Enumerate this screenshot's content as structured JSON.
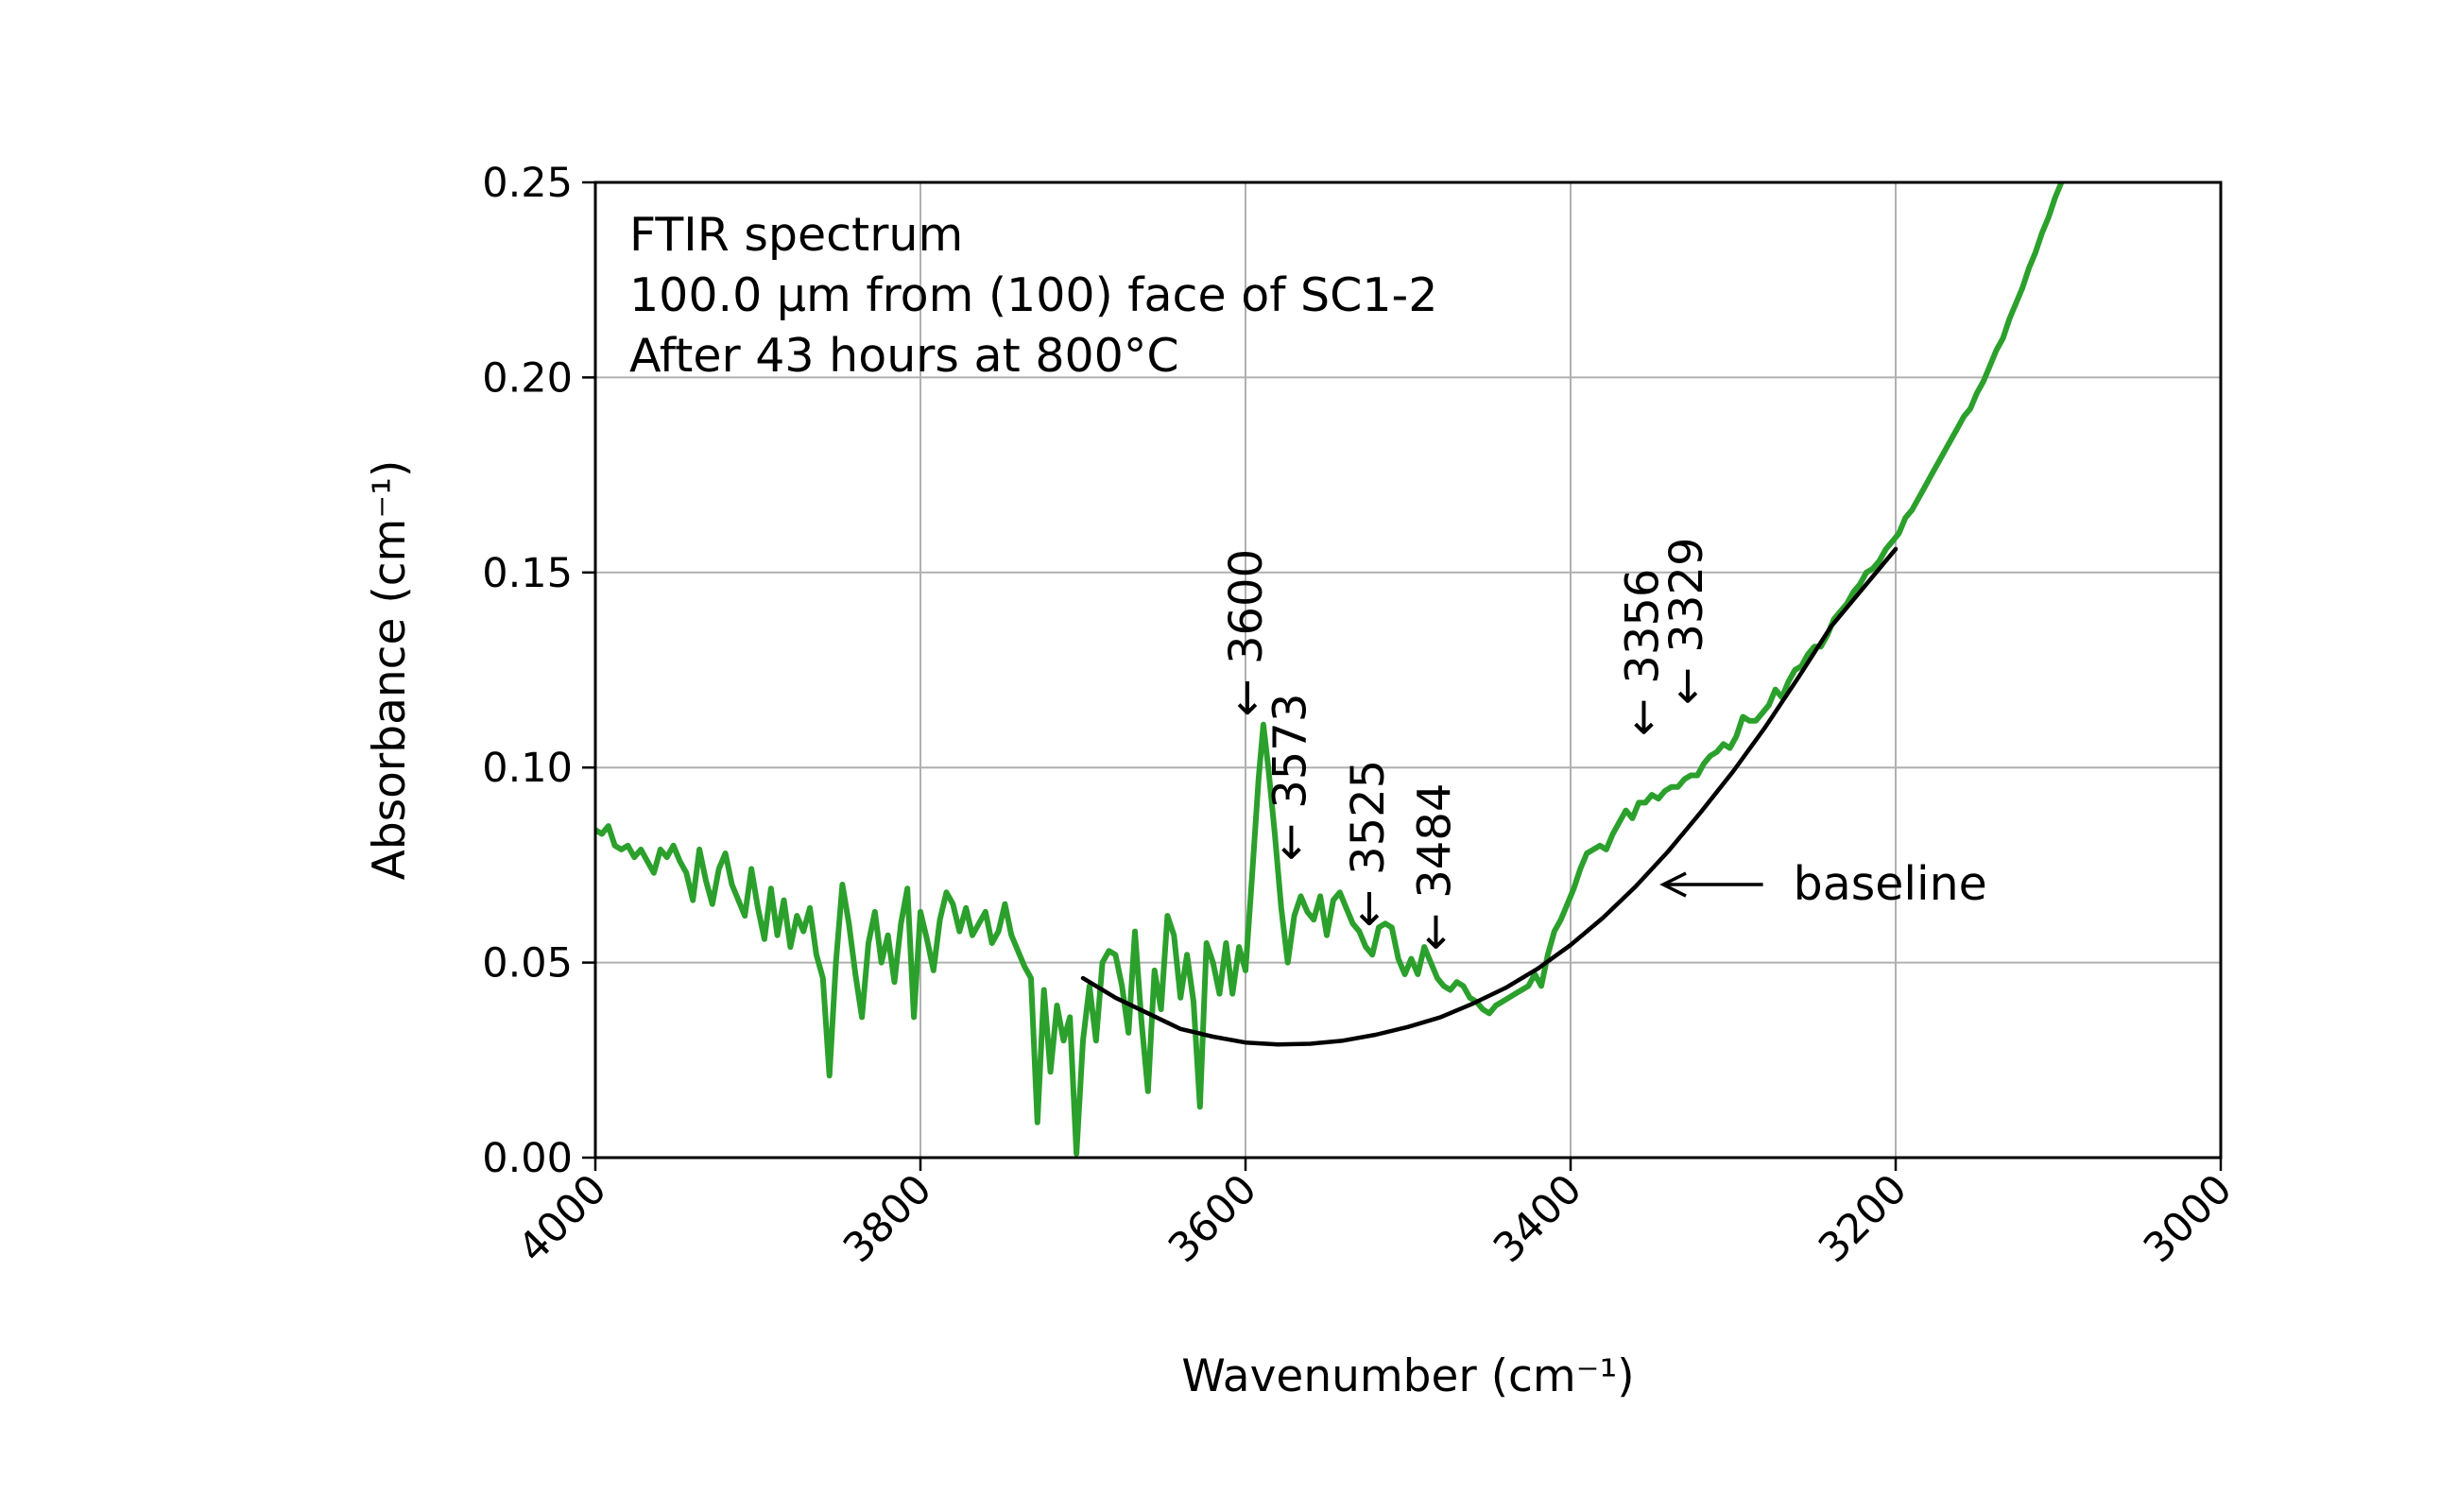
{
  "chart_data": {
    "type": "line",
    "annotation_lines": [
      "FTIR spectrum",
      "100.0 μm from (100) face of SC1-2",
      "After 43 hours at 800°C"
    ],
    "xlabel": "Wavenumber (cm⁻¹)",
    "ylabel": "Absorbance (cm⁻¹)",
    "xlim": [
      4000,
      3000
    ],
    "ylim": [
      0,
      0.25
    ],
    "x_ticks": [
      4000,
      3800,
      3600,
      3400,
      3200,
      3000
    ],
    "y_ticks": [
      "0.00",
      "0.05",
      "0.10",
      "0.15",
      "0.20",
      "0.25"
    ],
    "x_axis_reversed": true,
    "grid": true,
    "colors": {
      "spectrum": "#2ca02c",
      "baseline": "#000000",
      "grid": "#b0b0b0"
    },
    "series": [
      {
        "key": "spectrum",
        "points": [
          [
            4000,
            0.084
          ],
          [
            3996,
            0.083
          ],
          [
            3992,
            0.085
          ],
          [
            3988,
            0.08
          ],
          [
            3984,
            0.079
          ],
          [
            3980,
            0.08
          ],
          [
            3976,
            0.077
          ],
          [
            3972,
            0.079
          ],
          [
            3968,
            0.076
          ],
          [
            3964,
            0.073
          ],
          [
            3960,
            0.079
          ],
          [
            3956,
            0.077
          ],
          [
            3952,
            0.08
          ],
          [
            3948,
            0.076
          ],
          [
            3944,
            0.073
          ],
          [
            3940,
            0.066
          ],
          [
            3936,
            0.079
          ],
          [
            3932,
            0.071
          ],
          [
            3928,
            0.065
          ],
          [
            3924,
            0.074
          ],
          [
            3920,
            0.078
          ],
          [
            3916,
            0.07
          ],
          [
            3912,
            0.066
          ],
          [
            3908,
            0.062
          ],
          [
            3904,
            0.074
          ],
          [
            3900,
            0.064
          ],
          [
            3896,
            0.056
          ],
          [
            3892,
            0.069
          ],
          [
            3888,
            0.057
          ],
          [
            3884,
            0.066
          ],
          [
            3880,
            0.054
          ],
          [
            3876,
            0.062
          ],
          [
            3872,
            0.058
          ],
          [
            3868,
            0.064
          ],
          [
            3864,
            0.052
          ],
          [
            3860,
            0.046
          ],
          [
            3856,
            0.021
          ],
          [
            3852,
            0.05
          ],
          [
            3848,
            0.07
          ],
          [
            3844,
            0.06
          ],
          [
            3840,
            0.047
          ],
          [
            3836,
            0.036
          ],
          [
            3832,
            0.055
          ],
          [
            3828,
            0.063
          ],
          [
            3824,
            0.05
          ],
          [
            3820,
            0.057
          ],
          [
            3816,
            0.045
          ],
          [
            3812,
            0.06
          ],
          [
            3808,
            0.069
          ],
          [
            3804,
            0.036
          ],
          [
            3800,
            0.063
          ],
          [
            3796,
            0.056
          ],
          [
            3792,
            0.048
          ],
          [
            3788,
            0.061
          ],
          [
            3784,
            0.068
          ],
          [
            3780,
            0.065
          ],
          [
            3776,
            0.058
          ],
          [
            3772,
            0.064
          ],
          [
            3768,
            0.057
          ],
          [
            3764,
            0.06
          ],
          [
            3760,
            0.063
          ],
          [
            3756,
            0.055
          ],
          [
            3752,
            0.058
          ],
          [
            3748,
            0.065
          ],
          [
            3744,
            0.057
          ],
          [
            3740,
            0.053
          ],
          [
            3736,
            0.049
          ],
          [
            3732,
            0.046
          ],
          [
            3728,
            0.009
          ],
          [
            3724,
            0.043
          ],
          [
            3720,
            0.022
          ],
          [
            3716,
            0.039
          ],
          [
            3712,
            0.03
          ],
          [
            3708,
            0.036
          ],
          [
            3704,
            0.001
          ],
          [
            3700,
            0.03
          ],
          [
            3696,
            0.044
          ],
          [
            3692,
            0.03
          ],
          [
            3688,
            0.05
          ],
          [
            3684,
            0.053
          ],
          [
            3680,
            0.052
          ],
          [
            3676,
            0.044
          ],
          [
            3672,
            0.032
          ],
          [
            3668,
            0.058
          ],
          [
            3664,
            0.035
          ],
          [
            3660,
            0.017
          ],
          [
            3656,
            0.048
          ],
          [
            3652,
            0.038
          ],
          [
            3648,
            0.062
          ],
          [
            3644,
            0.057
          ],
          [
            3640,
            0.041
          ],
          [
            3636,
            0.052
          ],
          [
            3632,
            0.04
          ],
          [
            3628,
            0.013
          ],
          [
            3624,
            0.055
          ],
          [
            3620,
            0.05
          ],
          [
            3616,
            0.042
          ],
          [
            3612,
            0.055
          ],
          [
            3608,
            0.042
          ],
          [
            3604,
            0.054
          ],
          [
            3600,
            0.048
          ],
          [
            3596,
            0.072
          ],
          [
            3592,
            0.097
          ],
          [
            3589,
            0.111
          ],
          [
            3586,
            0.1
          ],
          [
            3582,
            0.083
          ],
          [
            3578,
            0.064
          ],
          [
            3574,
            0.05
          ],
          [
            3570,
            0.062
          ],
          [
            3566,
            0.067
          ],
          [
            3562,
            0.063
          ],
          [
            3558,
            0.061
          ],
          [
            3554,
            0.067
          ],
          [
            3550,
            0.057
          ],
          [
            3546,
            0.066
          ],
          [
            3542,
            0.068
          ],
          [
            3538,
            0.064
          ],
          [
            3534,
            0.06
          ],
          [
            3530,
            0.058
          ],
          [
            3526,
            0.054
          ],
          [
            3522,
            0.052
          ],
          [
            3518,
            0.059
          ],
          [
            3514,
            0.06
          ],
          [
            3510,
            0.059
          ],
          [
            3506,
            0.051
          ],
          [
            3502,
            0.047
          ],
          [
            3498,
            0.051
          ],
          [
            3494,
            0.047
          ],
          [
            3490,
            0.054
          ],
          [
            3486,
            0.05
          ],
          [
            3482,
            0.046
          ],
          [
            3478,
            0.044
          ],
          [
            3474,
            0.043
          ],
          [
            3470,
            0.045
          ],
          [
            3466,
            0.044
          ],
          [
            3462,
            0.041
          ],
          [
            3458,
            0.04
          ],
          [
            3454,
            0.038
          ],
          [
            3450,
            0.037
          ],
          [
            3446,
            0.039
          ],
          [
            3442,
            0.04
          ],
          [
            3438,
            0.041
          ],
          [
            3434,
            0.042
          ],
          [
            3430,
            0.043
          ],
          [
            3426,
            0.044
          ],
          [
            3422,
            0.047
          ],
          [
            3418,
            0.044
          ],
          [
            3414,
            0.052
          ],
          [
            3410,
            0.058
          ],
          [
            3406,
            0.061
          ],
          [
            3402,
            0.065
          ],
          [
            3398,
            0.069
          ],
          [
            3394,
            0.074
          ],
          [
            3390,
            0.078
          ],
          [
            3386,
            0.079
          ],
          [
            3382,
            0.08
          ],
          [
            3378,
            0.079
          ],
          [
            3374,
            0.083
          ],
          [
            3370,
            0.086
          ],
          [
            3366,
            0.089
          ],
          [
            3362,
            0.087
          ],
          [
            3358,
            0.091
          ],
          [
            3354,
            0.091
          ],
          [
            3350,
            0.093
          ],
          [
            3346,
            0.092
          ],
          [
            3342,
            0.094
          ],
          [
            3338,
            0.095
          ],
          [
            3334,
            0.095
          ],
          [
            3330,
            0.097
          ],
          [
            3326,
            0.098
          ],
          [
            3322,
            0.098
          ],
          [
            3318,
            0.101
          ],
          [
            3314,
            0.103
          ],
          [
            3310,
            0.104
          ],
          [
            3306,
            0.106
          ],
          [
            3302,
            0.105
          ],
          [
            3298,
            0.108
          ],
          [
            3294,
            0.113
          ],
          [
            3290,
            0.112
          ],
          [
            3286,
            0.112
          ],
          [
            3282,
            0.114
          ],
          [
            3278,
            0.116
          ],
          [
            3274,
            0.12
          ],
          [
            3270,
            0.118
          ],
          [
            3266,
            0.122
          ],
          [
            3262,
            0.125
          ],
          [
            3258,
            0.126
          ],
          [
            3254,
            0.129
          ],
          [
            3250,
            0.131
          ],
          [
            3246,
            0.131
          ],
          [
            3242,
            0.134
          ],
          [
            3238,
            0.138
          ],
          [
            3234,
            0.14
          ],
          [
            3230,
            0.142
          ],
          [
            3226,
            0.145
          ],
          [
            3222,
            0.147
          ],
          [
            3218,
            0.15
          ],
          [
            3214,
            0.151
          ],
          [
            3210,
            0.153
          ],
          [
            3206,
            0.156
          ],
          [
            3202,
            0.158
          ],
          [
            3198,
            0.16
          ],
          [
            3194,
            0.164
          ],
          [
            3190,
            0.166
          ],
          [
            3186,
            0.169
          ],
          [
            3182,
            0.172
          ],
          [
            3178,
            0.175
          ],
          [
            3174,
            0.178
          ],
          [
            3170,
            0.181
          ],
          [
            3166,
            0.184
          ],
          [
            3162,
            0.187
          ],
          [
            3158,
            0.19
          ],
          [
            3154,
            0.192
          ],
          [
            3150,
            0.196
          ],
          [
            3146,
            0.199
          ],
          [
            3142,
            0.203
          ],
          [
            3138,
            0.207
          ],
          [
            3134,
            0.21
          ],
          [
            3130,
            0.215
          ],
          [
            3126,
            0.219
          ],
          [
            3122,
            0.223
          ],
          [
            3118,
            0.228
          ],
          [
            3114,
            0.232
          ],
          [
            3110,
            0.237
          ],
          [
            3106,
            0.241
          ],
          [
            3102,
            0.246
          ],
          [
            3098,
            0.25
          ]
        ]
      },
      {
        "key": "baseline",
        "points": [
          [
            3700,
            0.046
          ],
          [
            3680,
            0.041
          ],
          [
            3660,
            0.037
          ],
          [
            3640,
            0.033
          ],
          [
            3620,
            0.031
          ],
          [
            3600,
            0.0295
          ],
          [
            3580,
            0.029
          ],
          [
            3560,
            0.0292
          ],
          [
            3540,
            0.03
          ],
          [
            3520,
            0.0315
          ],
          [
            3500,
            0.0335
          ],
          [
            3480,
            0.036
          ],
          [
            3460,
            0.0395
          ],
          [
            3440,
            0.0435
          ],
          [
            3420,
            0.0485
          ],
          [
            3400,
            0.0545
          ],
          [
            3380,
            0.0615
          ],
          [
            3360,
            0.0695
          ],
          [
            3340,
            0.0785
          ],
          [
            3320,
            0.0885
          ],
          [
            3300,
            0.099
          ],
          [
            3280,
            0.1105
          ],
          [
            3260,
            0.123
          ],
          [
            3240,
            0.136
          ],
          [
            3220,
            0.146
          ],
          [
            3200,
            0.156
          ]
        ]
      }
    ],
    "peak_labels": [
      {
        "text": "3600",
        "x": 3600,
        "y": 0.113,
        "rotation": -90
      },
      {
        "text": "3573",
        "x": 3573,
        "y": 0.076,
        "rotation": -90
      },
      {
        "text": "3525",
        "x": 3525,
        "y": 0.059,
        "rotation": -90
      },
      {
        "text": "3484",
        "x": 3484,
        "y": 0.053,
        "rotation": -90
      },
      {
        "text": "3356",
        "x": 3356,
        "y": 0.108,
        "rotation": -90
      },
      {
        "text": "3329",
        "x": 3329,
        "y": 0.116,
        "rotation": -90
      }
    ],
    "callout": {
      "text": "baseline",
      "arrow_to": [
        3343,
        0.07
      ],
      "text_at": [
        3270,
        0.07
      ]
    }
  }
}
